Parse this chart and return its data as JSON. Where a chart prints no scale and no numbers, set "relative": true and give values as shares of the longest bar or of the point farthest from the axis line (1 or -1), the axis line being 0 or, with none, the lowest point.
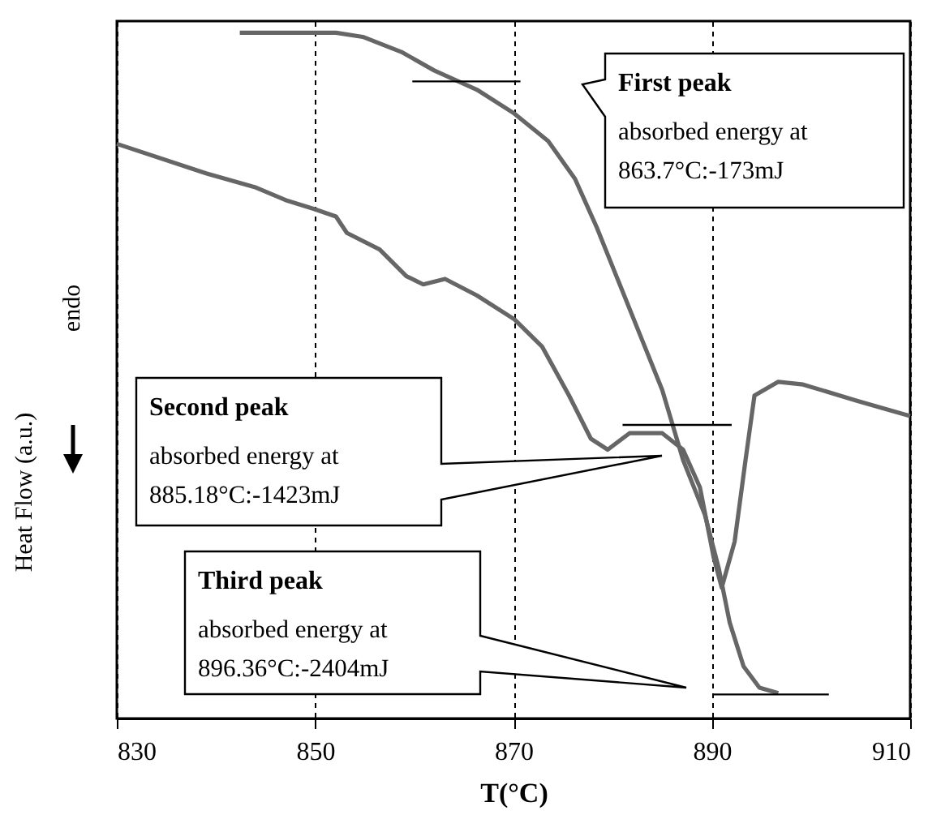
{
  "chart_data": {
    "type": "line",
    "xlabel": "T(°C)",
    "ylabel": "Heat Flow (a.u.)",
    "relative": true,
    "xlim": [
      830,
      910
    ],
    "xticks": [
      830,
      850,
      870,
      890,
      910
    ],
    "grid": "x",
    "series": [
      {
        "color": "#666666",
        "x": [
          842.4,
          852.1,
          854.8,
          858.7,
          862.0,
          866.3,
          870.1,
          873.5,
          876.2,
          878.4,
          880.6,
          882.8,
          885.0,
          887.1,
          889.3,
          890.7,
          891.8,
          893.2,
          894.8,
          896.7
        ],
        "values": [
          1.0,
          1.0,
          0.994,
          0.972,
          0.945,
          0.917,
          0.882,
          0.842,
          0.787,
          0.716,
          0.637,
          0.558,
          0.479,
          0.377,
          0.297,
          0.219,
          0.14,
          0.076,
          0.045,
          0.037
        ]
      },
      {
        "color": "#666666",
        "x": [
          830,
          839.0,
          843.9,
          847.2,
          849.9,
          852.1,
          853.2,
          856.5,
          859.2,
          860.9,
          863.1,
          866.3,
          870.1,
          872.9,
          875.6,
          877.8,
          879.5,
          881.7,
          885.0,
          887.1,
          888.8,
          890.2,
          891.0,
          892.3,
          893.4,
          894.3,
          896.7,
          899.2,
          904.7,
          910
        ],
        "values": [
          0.838,
          0.795,
          0.775,
          0.755,
          0.743,
          0.732,
          0.708,
          0.684,
          0.645,
          0.633,
          0.641,
          0.617,
          0.582,
          0.542,
          0.471,
          0.408,
          0.392,
          0.416,
          0.416,
          0.392,
          0.337,
          0.234,
          0.191,
          0.258,
          0.377,
          0.471,
          0.491,
          0.487,
          0.463,
          0.441
        ]
      },
      {
        "color": "#000000",
        "x": [
          859.8,
          870.7
        ],
        "values": [
          0.929,
          0.929
        ]
      },
      {
        "color": "#000000",
        "x": [
          881.0,
          892.0
        ],
        "values": [
          0.428,
          0.428
        ]
      },
      {
        "color": "#000000",
        "x": [
          890.1,
          901.8
        ],
        "values": [
          0.035,
          0.035
        ]
      }
    ],
    "annotations": [
      "First peak\nabsorbed energy at\n863.7°C:-173mJ",
      "Second peak\nabsorbed energy at\n885.18°C:-1423mJ",
      "Third peak\nabsorbed energy at\n896.36°C:-2404mJ",
      "endo"
    ]
  }
}
